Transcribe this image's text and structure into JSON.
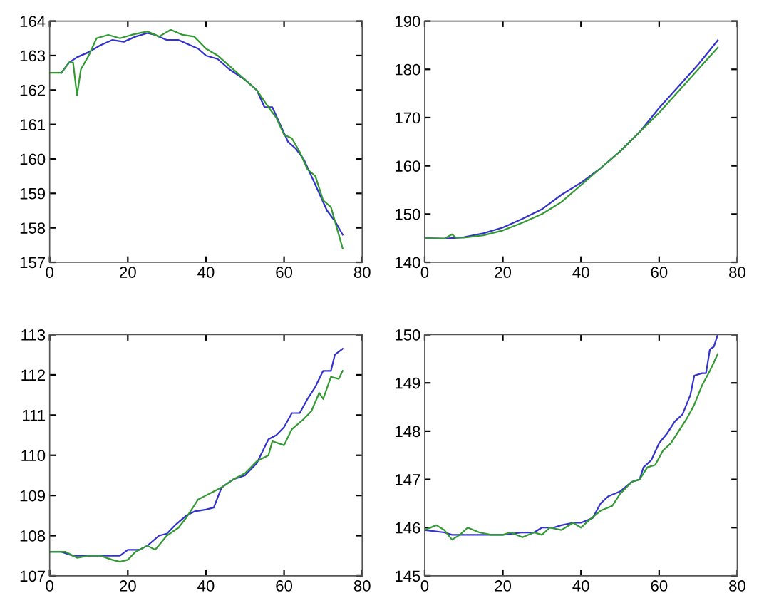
{
  "chart_data": [
    {
      "type": "line",
      "xlim": [
        0,
        80
      ],
      "xticks": [
        0,
        20,
        40,
        60,
        80
      ],
      "ylim": [
        157,
        164
      ],
      "yticks": [
        157,
        158,
        159,
        160,
        161,
        162,
        163,
        164
      ],
      "grid": false,
      "legend": false,
      "series": [
        {
          "color": "#3333cc",
          "x": [
            3,
            5,
            7,
            10,
            13,
            16,
            19,
            22,
            25,
            27,
            30,
            33,
            36,
            38,
            40,
            43,
            46,
            50,
            53,
            55,
            57,
            59,
            61,
            63,
            65,
            67,
            69,
            71,
            73,
            75
          ],
          "values": [
            162.5,
            162.8,
            162.95,
            163.1,
            163.3,
            163.45,
            163.4,
            163.55,
            163.65,
            163.6,
            163.45,
            163.45,
            163.3,
            163.2,
            163.0,
            162.9,
            162.6,
            162.3,
            162.0,
            161.5,
            161.5,
            161.0,
            160.5,
            160.3,
            160.0,
            159.5,
            159.0,
            158.5,
            158.2,
            157.8
          ]
        },
        {
          "color": "#339933",
          "x": [
            0,
            3,
            5,
            6,
            7,
            8,
            10,
            12,
            15,
            18,
            21,
            25,
            28,
            31,
            34,
            37,
            40,
            43,
            46,
            50,
            53,
            56,
            58,
            60,
            62,
            64,
            66,
            68,
            70,
            72,
            74,
            75
          ],
          "values": [
            162.5,
            162.5,
            162.8,
            162.8,
            161.85,
            162.6,
            163.0,
            163.5,
            163.6,
            163.5,
            163.6,
            163.7,
            163.55,
            163.75,
            163.6,
            163.55,
            163.2,
            163.0,
            162.7,
            162.3,
            162.0,
            161.5,
            161.2,
            160.7,
            160.6,
            160.2,
            159.7,
            159.5,
            158.8,
            158.6,
            157.8,
            157.4
          ]
        }
      ]
    },
    {
      "type": "line",
      "xlim": [
        0,
        80
      ],
      "xticks": [
        0,
        20,
        40,
        60,
        80
      ],
      "ylim": [
        140,
        190
      ],
      "yticks": [
        140,
        150,
        160,
        170,
        180,
        190
      ],
      "grid": false,
      "legend": false,
      "series": [
        {
          "color": "#3333cc",
          "x": [
            0,
            5,
            10,
            15,
            20,
            25,
            30,
            35,
            40,
            45,
            50,
            55,
            60,
            65,
            70,
            75
          ],
          "values": [
            145,
            144.9,
            145.2,
            146,
            147.2,
            149,
            151,
            154,
            156.5,
            159.5,
            163,
            167,
            172,
            176.5,
            181,
            186
          ]
        },
        {
          "color": "#339933",
          "x": [
            0,
            5,
            7,
            8,
            10,
            15,
            20,
            25,
            30,
            35,
            40,
            45,
            50,
            55,
            60,
            65,
            70,
            75
          ],
          "values": [
            145,
            144.9,
            145.8,
            145.1,
            145.1,
            145.6,
            146.6,
            148.2,
            150,
            152.5,
            156,
            159.5,
            163,
            167,
            171,
            175.5,
            180,
            184.5
          ]
        }
      ]
    },
    {
      "type": "line",
      "xlim": [
        0,
        80
      ],
      "xticks": [
        0,
        20,
        40,
        60,
        80
      ],
      "ylim": [
        107,
        113
      ],
      "yticks": [
        107,
        108,
        109,
        110,
        111,
        112,
        113
      ],
      "grid": false,
      "legend": false,
      "series": [
        {
          "color": "#3333cc",
          "x": [
            0,
            3,
            6,
            10,
            15,
            18,
            20,
            23,
            25,
            28,
            30,
            32,
            35,
            37,
            40,
            42,
            44,
            47,
            50,
            53,
            56,
            58,
            60,
            62,
            64,
            66,
            68,
            70,
            72,
            73,
            75
          ],
          "values": [
            107.6,
            107.6,
            107.5,
            107.5,
            107.5,
            107.5,
            107.65,
            107.65,
            107.75,
            108.0,
            108.05,
            108.25,
            108.5,
            108.6,
            108.65,
            108.7,
            109.2,
            109.4,
            109.5,
            109.8,
            110.4,
            110.5,
            110.7,
            111.05,
            111.05,
            111.4,
            111.7,
            112.1,
            112.1,
            112.5,
            112.65
          ]
        },
        {
          "color": "#339933",
          "x": [
            0,
            4,
            7,
            10,
            13,
            16,
            18,
            20,
            22,
            25,
            27,
            30,
            33,
            35,
            38,
            40,
            42,
            44,
            47,
            50,
            53,
            56,
            57,
            60,
            62,
            65,
            67,
            69,
            70,
            72,
            74,
            75
          ],
          "values": [
            107.6,
            107.6,
            107.45,
            107.5,
            107.5,
            107.4,
            107.35,
            107.4,
            107.6,
            107.75,
            107.65,
            108.0,
            108.2,
            108.45,
            108.9,
            109.0,
            109.1,
            109.2,
            109.4,
            109.55,
            109.85,
            110.0,
            110.35,
            110.25,
            110.65,
            110.9,
            111.1,
            111.55,
            111.4,
            111.95,
            111.9,
            112.1
          ]
        }
      ]
    },
    {
      "type": "line",
      "xlim": [
        0,
        80
      ],
      "xticks": [
        0,
        20,
        40,
        60,
        80
      ],
      "ylim": [
        145,
        150
      ],
      "yticks": [
        145,
        146,
        147,
        148,
        149,
        150
      ],
      "grid": false,
      "legend": false,
      "series": [
        {
          "color": "#3333cc",
          "x": [
            0,
            5,
            7,
            10,
            15,
            20,
            25,
            28,
            30,
            33,
            35,
            38,
            40,
            43,
            45,
            47,
            50,
            53,
            55,
            56,
            58,
            60,
            62,
            64,
            66,
            68,
            69,
            71,
            72,
            73,
            74,
            75
          ],
          "values": [
            145.95,
            145.9,
            145.85,
            145.85,
            145.85,
            145.85,
            145.9,
            145.9,
            146.0,
            146.0,
            146.05,
            146.1,
            146.1,
            146.2,
            146.5,
            146.65,
            146.75,
            146.95,
            147.0,
            147.25,
            147.4,
            147.75,
            147.95,
            148.2,
            148.35,
            148.75,
            149.15,
            149.2,
            149.2,
            149.7,
            149.75,
            150.0
          ]
        },
        {
          "color": "#339933",
          "x": [
            0,
            3,
            5,
            7,
            9,
            11,
            14,
            17,
            20,
            22,
            25,
            28,
            30,
            32,
            35,
            38,
            40,
            42,
            45,
            48,
            50,
            53,
            55,
            57,
            59,
            61,
            63,
            65,
            67,
            69,
            71,
            73,
            75
          ],
          "values": [
            145.95,
            146.05,
            145.95,
            145.75,
            145.85,
            146.0,
            145.9,
            145.85,
            145.85,
            145.9,
            145.8,
            145.9,
            145.85,
            146.0,
            145.95,
            146.1,
            146.0,
            146.15,
            146.35,
            146.45,
            146.7,
            146.95,
            147.0,
            147.25,
            147.3,
            147.6,
            147.75,
            148.0,
            148.25,
            148.55,
            148.95,
            149.25,
            149.6
          ]
        }
      ]
    }
  ]
}
